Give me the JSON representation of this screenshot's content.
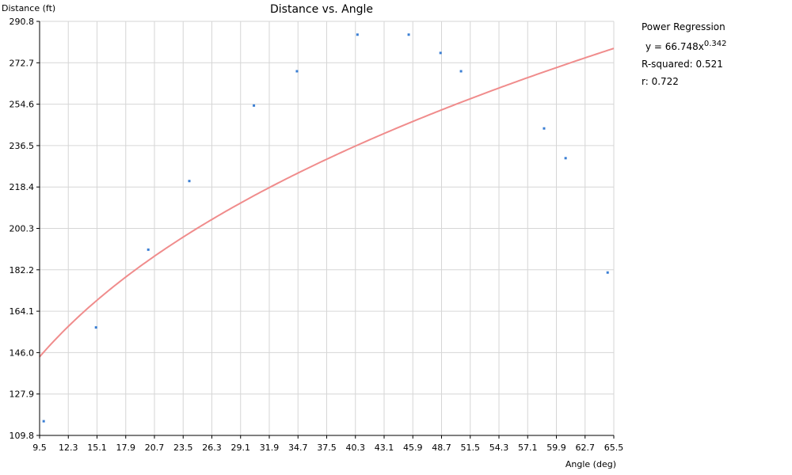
{
  "chart_data": {
    "type": "scatter",
    "title": "Distance vs. Angle",
    "xlabel": "Angle (deg)",
    "ylabel": "Distance (ft)",
    "xlim": [
      9.5,
      65.5
    ],
    "ylim": [
      109.8,
      290.8
    ],
    "x_ticks": [
      "9.5",
      "12.3",
      "15.1",
      "17.9",
      "20.7",
      "23.5",
      "26.3",
      "29.1",
      "31.9",
      "34.7",
      "37.5",
      "40.3",
      "43.1",
      "45.9",
      "48.7",
      "51.5",
      "54.3",
      "57.1",
      "59.9",
      "62.7",
      "65.5"
    ],
    "y_ticks": [
      "109.8",
      "127.9",
      "146.0",
      "164.1",
      "182.2",
      "200.3",
      "218.4",
      "236.5",
      "254.6",
      "272.7",
      "290.8"
    ],
    "grid": true,
    "points": [
      {
        "x": 9.9,
        "y": 116
      },
      {
        "x": 15.0,
        "y": 157
      },
      {
        "x": 20.1,
        "y": 191
      },
      {
        "x": 24.1,
        "y": 221
      },
      {
        "x": 30.4,
        "y": 254
      },
      {
        "x": 34.6,
        "y": 269
      },
      {
        "x": 40.5,
        "y": 285
      },
      {
        "x": 45.5,
        "y": 285
      },
      {
        "x": 48.6,
        "y": 277
      },
      {
        "x": 50.6,
        "y": 269
      },
      {
        "x": 58.7,
        "y": 244
      },
      {
        "x": 60.8,
        "y": 231
      },
      {
        "x": 64.9,
        "y": 181
      }
    ],
    "regression": {
      "type": "power",
      "a": 66.748,
      "b": 0.342
    },
    "colors": {
      "points": "#3b7fd4",
      "curve": "#f08c8c",
      "grid": "#d6d6d6",
      "axis": "#000000"
    }
  },
  "stats": {
    "heading": "Power Regression",
    "equation_prefix": "y = 66.748x",
    "equation_exponent": "0.342",
    "r_squared": "R-squared: 0.521",
    "r": "r: 0.722"
  }
}
